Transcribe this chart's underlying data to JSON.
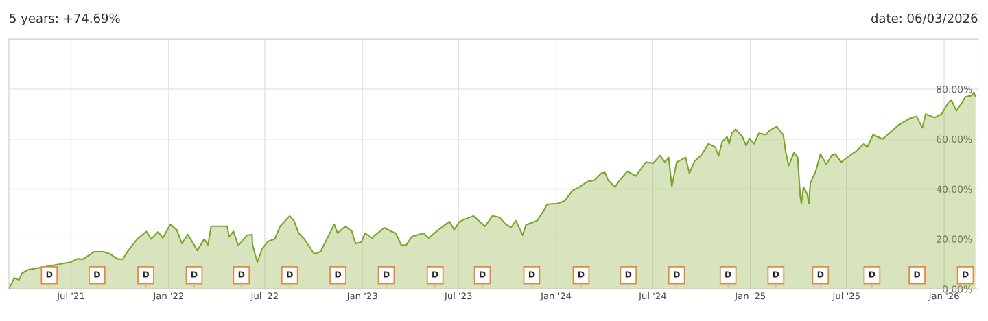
{
  "chart_data": {
    "type": "area",
    "title": "5 years: +74.69%",
    "subtitle": "date: 06/03/2026",
    "x": [
      "2021-03-06",
      "2021-03-16",
      "2021-03-25",
      "2021-03-31",
      "2021-04-11",
      "2021-06-30",
      "2021-07-14",
      "2021-07-23",
      "2021-08-14",
      "2021-08-31",
      "2021-09-13",
      "2021-09-25",
      "2021-10-06",
      "2021-10-17",
      "2021-11-03",
      "2021-11-20",
      "2021-11-29",
      "2021-12-12",
      "2021-12-21",
      "2022-01-04",
      "2022-01-16",
      "2022-01-26",
      "2022-02-06",
      "2022-02-15",
      "2022-02-24",
      "2022-03-09",
      "2022-03-16",
      "2022-03-22",
      "2022-04-21",
      "2022-04-25",
      "2022-05-03",
      "2022-05-12",
      "2022-05-29",
      "2022-06-07",
      "2022-06-08",
      "2022-06-17",
      "2022-06-26",
      "2022-07-07",
      "2022-07-20",
      "2022-07-30",
      "2022-08-17",
      "2022-08-25",
      "2022-09-03",
      "2022-09-13",
      "2022-09-26",
      "2022-10-02",
      "2022-10-14",
      "2022-10-27",
      "2022-11-09",
      "2022-11-15",
      "2022-11-30",
      "2022-12-12",
      "2022-12-19",
      "2022-12-30",
      "2023-01-06",
      "2023-01-19",
      "2023-02-11",
      "2023-02-24",
      "2023-03-05",
      "2023-03-15",
      "2023-03-24",
      "2023-04-04",
      "2023-04-26",
      "2023-05-06",
      "2023-05-21",
      "2023-06-14",
      "2023-06-23",
      "2023-07-03",
      "2023-07-29",
      "2023-08-20",
      "2023-09-03",
      "2023-09-16",
      "2023-09-28",
      "2023-10-08",
      "2023-10-17",
      "2023-10-30",
      "2023-11-05",
      "2023-11-26",
      "2023-12-08",
      "2023-12-15",
      "2024-01-04",
      "2024-01-17",
      "2024-02-01",
      "2024-02-14",
      "2024-02-29",
      "2024-03-13",
      "2024-03-26",
      "2024-04-02",
      "2024-04-08",
      "2024-04-21",
      "2024-04-28",
      "2024-05-14",
      "2024-05-30",
      "2024-06-18",
      "2024-07-02",
      "2024-07-15",
      "2024-07-24",
      "2024-07-31",
      "2024-08-06",
      "2024-08-15",
      "2024-09-01",
      "2024-09-08",
      "2024-09-18",
      "2024-09-30",
      "2024-10-14",
      "2024-10-27",
      "2024-11-02",
      "2024-11-09",
      "2024-11-18",
      "2024-11-22",
      "2024-11-27",
      "2024-12-04",
      "2024-12-17",
      "2024-12-24",
      "2024-12-30",
      "2025-01-08",
      "2025-01-17",
      "2025-01-30",
      "2025-02-07",
      "2025-02-20",
      "2025-02-26",
      "2025-03-04",
      "2025-03-08",
      "2025-03-14",
      "2025-03-24",
      "2025-03-31",
      "2025-04-05",
      "2025-04-07",
      "2025-04-11",
      "2025-04-18",
      "2025-04-21",
      "2025-04-24",
      "2025-05-04",
      "2025-05-13",
      "2025-05-24",
      "2025-06-03",
      "2025-06-10",
      "2025-06-21",
      "2025-06-29",
      "2025-07-17",
      "2025-08-03",
      "2025-08-09",
      "2025-08-20",
      "2025-09-07",
      "2025-10-07",
      "2025-10-29",
      "2025-11-10",
      "2025-11-21",
      "2025-11-27",
      "2025-12-14",
      "2025-12-27",
      "2026-01-09",
      "2026-01-15",
      "2026-01-24",
      "2026-02-04",
      "2026-02-10",
      "2026-02-22",
      "2026-02-26",
      "2026-03-01"
    ],
    "series": [
      {
        "color": "#7ba428",
        "values": [
          0,
          4.4,
          3.6,
          6.3,
          7.7,
          10.7,
          12.1,
          11.8,
          14.9,
          14.9,
          14,
          12.1,
          11.8,
          15.4,
          20,
          23,
          20,
          22.9,
          20.4,
          25.9,
          23.7,
          18.2,
          21.8,
          18.7,
          15.4,
          20,
          17.6,
          25.1,
          25.1,
          20.9,
          23.1,
          17.4,
          21.5,
          21.8,
          17.6,
          10.7,
          16,
          19,
          20,
          25.1,
          29.2,
          27.3,
          22.3,
          20.1,
          16,
          14,
          14.9,
          20.4,
          25.9,
          22.3,
          25.1,
          23.1,
          18.2,
          18.7,
          22.3,
          20.4,
          24.5,
          23.1,
          22.3,
          17.6,
          17.4,
          20.9,
          22.3,
          20.4,
          23.1,
          27,
          23.7,
          27,
          29.2,
          25.1,
          29.2,
          28.7,
          25.9,
          24.5,
          27.3,
          21.5,
          25.6,
          27.3,
          31.1,
          33.9,
          34.2,
          35.3,
          39.4,
          40.8,
          43,
          43.5,
          46.3,
          46.6,
          43.5,
          40.8,
          43,
          47.1,
          45.2,
          50.7,
          50.4,
          53.4,
          50.7,
          52.6,
          41,
          50.7,
          52.6,
          46.3,
          51.2,
          53.4,
          58.1,
          56.7,
          53.2,
          59,
          60.9,
          58.1,
          62.3,
          63.9,
          60.9,
          57.3,
          60.3,
          58.1,
          62.3,
          61.7,
          63.6,
          65,
          63.1,
          61.7,
          55.4,
          49.3,
          54.5,
          52.6,
          36.9,
          34.2,
          40.8,
          38,
          34.2,
          42.4,
          47.1,
          54,
          49.9,
          53.4,
          54,
          50.7,
          52.1,
          54.8,
          58.1,
          56.7,
          61.7,
          60,
          65.6,
          68.3,
          69.1,
          64.5,
          70,
          68.6,
          70,
          74.7,
          75.5,
          71.3,
          74.7,
          76.9,
          77.4,
          78.8,
          76.9
        ]
      }
    ],
    "xlim": [
      "2021-03-06",
      "2026-03-06"
    ],
    "xticks": [
      {
        "value": "2021-07-01",
        "label": "Jul '21"
      },
      {
        "value": "2022-01-01",
        "label": "Jan '22"
      },
      {
        "value": "2022-07-01",
        "label": "Jul '22"
      },
      {
        "value": "2023-01-01",
        "label": "Jan '23"
      },
      {
        "value": "2023-07-01",
        "label": "Jul '23"
      },
      {
        "value": "2024-01-01",
        "label": "Jan '24"
      },
      {
        "value": "2024-07-01",
        "label": "Jul '24"
      },
      {
        "value": "2025-01-01",
        "label": "Jan '25"
      },
      {
        "value": "2025-07-01",
        "label": "Jul '25"
      },
      {
        "value": "2026-01-01",
        "label": "Jan '26"
      }
    ],
    "ylim": [
      0,
      100
    ],
    "yticks": [
      {
        "value": 0,
        "label": "0.00%"
      },
      {
        "value": 20,
        "label": "20.00%"
      },
      {
        "value": 40,
        "label": "40.00%"
      },
      {
        "value": 60,
        "label": "60.00%"
      },
      {
        "value": 80,
        "label": "80.00%"
      }
    ],
    "grid": true,
    "annotations": [
      {
        "text": "D",
        "x": "2021-05-21"
      },
      {
        "text": "D",
        "x": "2021-08-19"
      },
      {
        "text": "D",
        "x": "2021-11-19"
      },
      {
        "text": "D",
        "x": "2022-02-18"
      },
      {
        "text": "D",
        "x": "2022-05-18"
      },
      {
        "text": "D",
        "x": "2022-08-17"
      },
      {
        "text": "D",
        "x": "2022-11-16"
      },
      {
        "text": "D",
        "x": "2023-02-15"
      },
      {
        "text": "D",
        "x": "2023-05-18"
      },
      {
        "text": "D",
        "x": "2023-08-15"
      },
      {
        "text": "D",
        "x": "2023-11-16"
      },
      {
        "text": "D",
        "x": "2024-02-17"
      },
      {
        "text": "D",
        "x": "2024-05-16"
      },
      {
        "text": "D",
        "x": "2024-08-15"
      },
      {
        "text": "D",
        "x": "2024-11-20"
      },
      {
        "text": "D",
        "x": "2025-02-18"
      },
      {
        "text": "D",
        "x": "2025-05-13"
      },
      {
        "text": "D",
        "x": "2025-08-18"
      },
      {
        "text": "D",
        "x": "2025-11-11"
      },
      {
        "text": "D",
        "x": "2026-02-10"
      }
    ]
  }
}
